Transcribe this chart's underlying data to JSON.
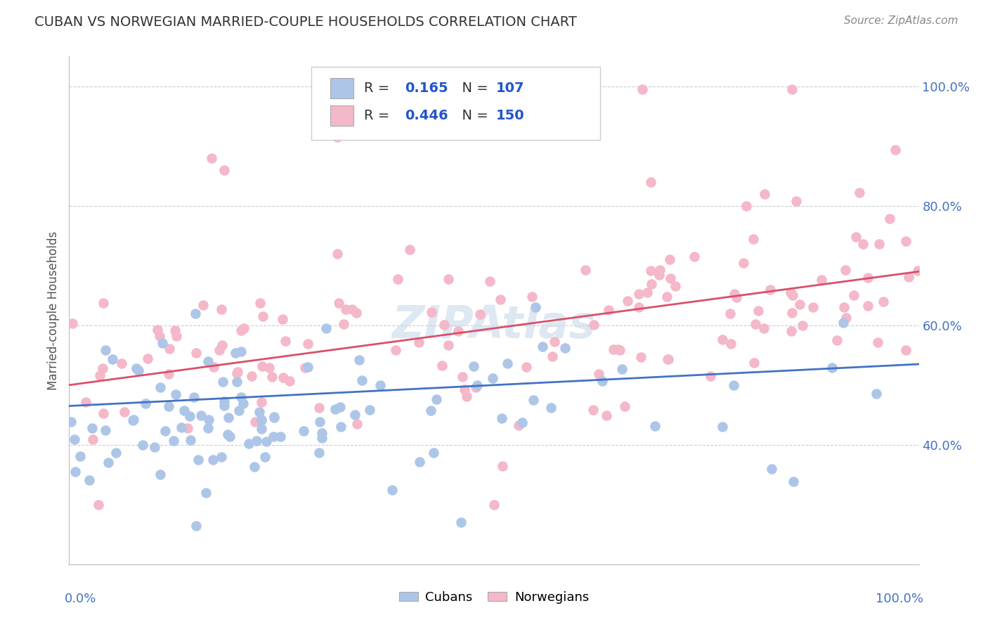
{
  "title": "CUBAN VS NORWEGIAN MARRIED-COUPLE HOUSEHOLDS CORRELATION CHART",
  "source": "Source: ZipAtlas.com",
  "ylabel": "Married-couple Households",
  "xlim": [
    0,
    1
  ],
  "ylim": [
    0.2,
    1.05
  ],
  "ytick_vals": [
    0.4,
    0.6,
    0.8,
    1.0
  ],
  "ytick_labels": [
    "40.0%",
    "60.0%",
    "80.0%",
    "100.0%"
  ],
  "background_color": "#ffffff",
  "grid_color": "#cccccc",
  "watermark": "ZipAtlas",
  "cuban_color": "#adc6e8",
  "cuban_line_color": "#4472c4",
  "cuban_R": 0.165,
  "cuban_N": 107,
  "cuban_label": "Cubans",
  "norwegian_color": "#f4b8c8",
  "norwegian_line_color": "#d9506a",
  "norwegian_R": 0.446,
  "norwegian_N": 150,
  "norwegian_label": "Norwegians",
  "cuban_line_y0": 0.465,
  "cuban_line_y1": 0.535,
  "norwegian_line_y0": 0.5,
  "norwegian_line_y1": 0.69,
  "tick_color": "#4472c4",
  "title_color": "#333333",
  "source_color": "#888888"
}
